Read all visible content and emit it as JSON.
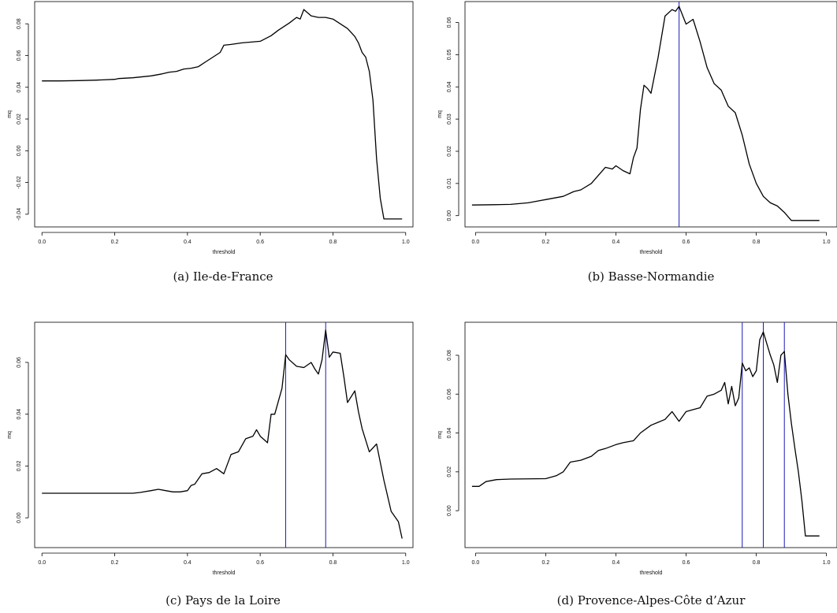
{
  "chart_data": [
    {
      "type": "line",
      "caption": "(a) Ile-de-France",
      "xlabel": "threshold",
      "ylabel": "mq",
      "xlim": [
        -0.02,
        1.02
      ],
      "ylim": [
        -0.048,
        0.094
      ],
      "xticks": [
        0.0,
        0.2,
        0.4,
        0.6,
        0.8,
        1.0
      ],
      "xtick_labels": [
        "0.0",
        "0.2",
        "0.4",
        "0.6",
        "0.8",
        "1.0"
      ],
      "yticks": [
        -0.04,
        -0.02,
        0.0,
        0.02,
        0.04,
        0.06,
        0.08
      ],
      "ytick_labels": [
        "-0.04",
        "-0.02",
        "0.00",
        "0.02",
        "0.04",
        "0.06",
        "0.08"
      ],
      "vlines": [],
      "series": [
        {
          "x": [
            0.0,
            0.05,
            0.1,
            0.15,
            0.2,
            0.21,
            0.25,
            0.3,
            0.33,
            0.35,
            0.37,
            0.39,
            0.41,
            0.43,
            0.45,
            0.47,
            0.49,
            0.5,
            0.52,
            0.55,
            0.6,
            0.63,
            0.65,
            0.68,
            0.7,
            0.71,
            0.72,
            0.74,
            0.76,
            0.78,
            0.8,
            0.82,
            0.84,
            0.86,
            0.87,
            0.88,
            0.89,
            0.9,
            0.91,
            0.92,
            0.93,
            0.94,
            0.95,
            0.97,
            0.99
          ],
          "y": [
            0.044,
            0.044,
            0.0442,
            0.0445,
            0.045,
            0.0455,
            0.046,
            0.0472,
            0.0484,
            0.0495,
            0.05,
            0.0515,
            0.052,
            0.053,
            0.056,
            0.059,
            0.062,
            0.0665,
            0.067,
            0.068,
            0.069,
            0.0725,
            0.076,
            0.0805,
            0.084,
            0.083,
            0.089,
            0.085,
            0.084,
            0.084,
            0.083,
            0.08,
            0.077,
            0.072,
            0.068,
            0.062,
            0.059,
            0.05,
            0.032,
            -0.005,
            -0.03,
            -0.043,
            -0.043,
            -0.043,
            -0.043
          ]
        }
      ]
    },
    {
      "type": "line",
      "caption": "(b) Basse-Normandie",
      "xlabel": "threshold",
      "ylabel": "mq",
      "xlim": [
        -0.03,
        1.03
      ],
      "ylim": [
        -0.0035,
        0.0665
      ],
      "xticks": [
        0.0,
        0.2,
        0.4,
        0.6,
        0.8,
        1.0
      ],
      "xtick_labels": [
        "0.0",
        "0.2",
        "0.4",
        "0.6",
        "0.8",
        "1.0"
      ],
      "yticks": [
        0.0,
        0.01,
        0.02,
        0.03,
        0.04,
        0.05,
        0.06
      ],
      "ytick_labels": [
        "0.00",
        "0.01",
        "0.02",
        "0.03",
        "0.04",
        "0.05",
        "0.06"
      ],
      "vlines": [
        0.58
      ],
      "series": [
        {
          "x": [
            -0.01,
            0.05,
            0.1,
            0.15,
            0.2,
            0.25,
            0.28,
            0.3,
            0.33,
            0.35,
            0.37,
            0.39,
            0.4,
            0.42,
            0.44,
            0.45,
            0.46,
            0.47,
            0.48,
            0.49,
            0.5,
            0.52,
            0.54,
            0.56,
            0.57,
            0.58,
            0.6,
            0.62,
            0.64,
            0.66,
            0.68,
            0.7,
            0.72,
            0.74,
            0.76,
            0.78,
            0.8,
            0.82,
            0.84,
            0.86,
            0.88,
            0.9,
            0.94,
            0.96,
            0.98
          ],
          "y": [
            0.0033,
            0.0034,
            0.0035,
            0.004,
            0.005,
            0.006,
            0.0075,
            0.008,
            0.01,
            0.0125,
            0.015,
            0.0145,
            0.0155,
            0.014,
            0.013,
            0.018,
            0.021,
            0.033,
            0.0405,
            0.0395,
            0.038,
            0.049,
            0.062,
            0.064,
            0.0635,
            0.065,
            0.0595,
            0.061,
            0.054,
            0.046,
            0.041,
            0.039,
            0.034,
            0.032,
            0.025,
            0.016,
            0.01,
            0.006,
            0.004,
            0.003,
            0.001,
            -0.0015,
            -0.0015,
            -0.0015,
            -0.0015
          ]
        }
      ]
    },
    {
      "type": "line",
      "caption": "(c) Pays de la Loire",
      "xlabel": "threshold",
      "ylabel": "mq",
      "xlim": [
        -0.02,
        1.02
      ],
      "ylim": [
        -0.0115,
        0.0755
      ],
      "xticks": [
        0.0,
        0.2,
        0.4,
        0.6,
        0.8,
        1.0
      ],
      "xtick_labels": [
        "0.0",
        "0.2",
        "0.4",
        "0.6",
        "0.8",
        "1.0"
      ],
      "yticks": [
        0.0,
        0.02,
        0.04,
        0.06
      ],
      "ytick_labels": [
        "0.00",
        "0.02",
        "0.04",
        "0.06"
      ],
      "vlines": [
        0.67,
        0.78
      ],
      "series": [
        {
          "x": [
            0.0,
            0.1,
            0.2,
            0.25,
            0.27,
            0.3,
            0.32,
            0.34,
            0.36,
            0.38,
            0.4,
            0.41,
            0.42,
            0.44,
            0.46,
            0.48,
            0.5,
            0.52,
            0.54,
            0.56,
            0.58,
            0.59,
            0.6,
            0.62,
            0.63,
            0.64,
            0.66,
            0.67,
            0.68,
            0.7,
            0.72,
            0.74,
            0.75,
            0.76,
            0.77,
            0.78,
            0.79,
            0.8,
            0.82,
            0.83,
            0.84,
            0.86,
            0.87,
            0.88,
            0.9,
            0.92,
            0.94,
            0.96,
            0.98,
            0.99
          ],
          "y": [
            0.0095,
            0.0095,
            0.0095,
            0.0095,
            0.0098,
            0.0105,
            0.011,
            0.0105,
            0.01,
            0.01,
            0.0105,
            0.0125,
            0.013,
            0.017,
            0.0175,
            0.019,
            0.017,
            0.0245,
            0.0255,
            0.0305,
            0.0315,
            0.034,
            0.0315,
            0.029,
            0.04,
            0.04,
            0.05,
            0.063,
            0.061,
            0.0585,
            0.058,
            0.06,
            0.0575,
            0.0555,
            0.061,
            0.0725,
            0.062,
            0.064,
            0.0635,
            0.0545,
            0.0445,
            0.049,
            0.041,
            0.0345,
            0.0255,
            0.0285,
            0.0145,
            0.0025,
            -0.0015,
            -0.008
          ]
        }
      ]
    },
    {
      "type": "line",
      "caption": "(d) Provence-Alpes-Côte d’Azur",
      "xlabel": "threshold",
      "ylabel": "mq",
      "xlim": [
        -0.03,
        1.03
      ],
      "ylim": [
        -0.019,
        0.097
      ],
      "xticks": [
        0.0,
        0.2,
        0.4,
        0.6,
        0.8,
        1.0
      ],
      "xtick_labels": [
        "0.0",
        "0.2",
        "0.4",
        "0.6",
        "0.8",
        "1.0"
      ],
      "yticks": [
        0.0,
        0.02,
        0.04,
        0.06,
        0.08
      ],
      "ytick_labels": [
        "0.00",
        "0.02",
        "0.04",
        "0.06",
        "0.08"
      ],
      "vlines": [
        0.76,
        0.82,
        0.88
      ],
      "series": [
        {
          "x": [
            -0.01,
            0.01,
            0.03,
            0.06,
            0.1,
            0.2,
            0.23,
            0.25,
            0.27,
            0.3,
            0.33,
            0.35,
            0.37,
            0.4,
            0.42,
            0.45,
            0.47,
            0.5,
            0.52,
            0.54,
            0.56,
            0.58,
            0.6,
            0.62,
            0.64,
            0.66,
            0.68,
            0.7,
            0.71,
            0.72,
            0.73,
            0.74,
            0.75,
            0.76,
            0.77,
            0.78,
            0.79,
            0.8,
            0.81,
            0.82,
            0.83,
            0.84,
            0.85,
            0.86,
            0.87,
            0.88,
            0.89,
            0.9,
            0.91,
            0.92,
            0.93,
            0.94,
            0.95,
            0.96,
            0.98
          ],
          "y": [
            0.0125,
            0.0125,
            0.015,
            0.016,
            0.0163,
            0.0165,
            0.018,
            0.02,
            0.025,
            0.026,
            0.028,
            0.031,
            0.032,
            0.034,
            0.035,
            0.036,
            0.04,
            0.044,
            0.0455,
            0.047,
            0.051,
            0.046,
            0.051,
            0.052,
            0.053,
            0.059,
            0.06,
            0.062,
            0.066,
            0.055,
            0.064,
            0.054,
            0.058,
            0.076,
            0.072,
            0.0735,
            0.069,
            0.072,
            0.088,
            0.092,
            0.086,
            0.08,
            0.075,
            0.066,
            0.08,
            0.082,
            0.06,
            0.045,
            0.032,
            0.02,
            0.005,
            -0.013,
            -0.013,
            -0.013,
            -0.013
          ]
        }
      ]
    }
  ]
}
